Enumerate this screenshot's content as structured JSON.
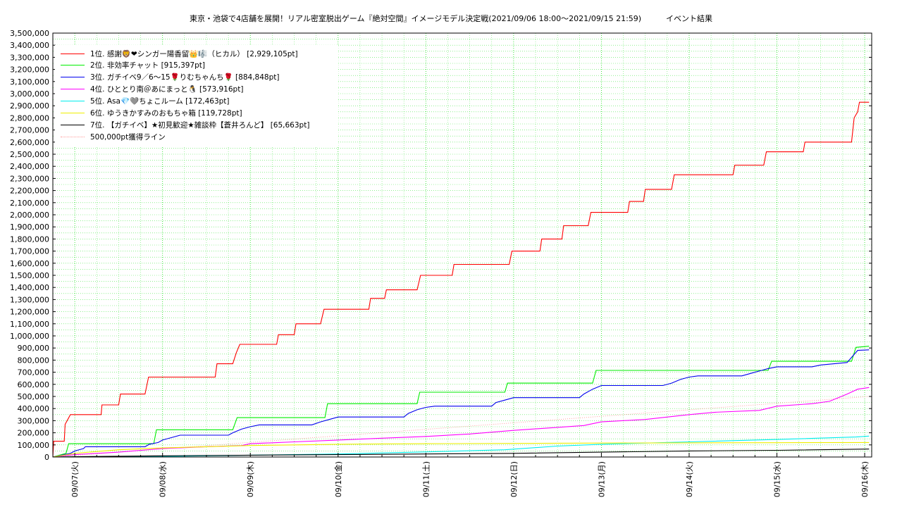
{
  "chart_data": {
    "type": "line",
    "title": "東京・池袋で4店舗を展開！リアル密室脱出ゲーム『絶対空間』イメージモデル決定戦(2021/09/06 18:00〜2021/09/15 21:59)          イベント結果",
    "xlabel": "",
    "ylabel": "",
    "ylim": [
      0,
      3500000
    ],
    "yticks": [
      0,
      100000,
      200000,
      300000,
      400000,
      500000,
      600000,
      700000,
      800000,
      900000,
      1000000,
      1100000,
      1200000,
      1300000,
      1400000,
      1500000,
      1600000,
      1700000,
      1800000,
      1900000,
      2000000,
      2100000,
      2200000,
      2300000,
      2400000,
      2500000,
      2600000,
      2700000,
      2800000,
      2900000,
      3000000,
      3100000,
      3200000,
      3300000,
      3400000,
      3500000
    ],
    "ytick_labels": [
      "0",
      "100,000",
      "200,000",
      "300,000",
      "400,000",
      "500,000",
      "600,000",
      "700,000",
      "800,000",
      "900,000",
      "1,000,000",
      "1,100,000",
      "1,200,000",
      "1,300,000",
      "1,400,000",
      "1,500,000",
      "1,600,000",
      "1,700,000",
      "1,800,000",
      "1,900,000",
      "2,000,000",
      "2,100,000",
      "2,200,000",
      "2,300,000",
      "2,400,000",
      "2,500,000",
      "2,600,000",
      "2,700,000",
      "2,800,000",
      "2,900,000",
      "3,000,000",
      "3,100,000",
      "3,200,000",
      "3,300,000",
      "3,400,000",
      "3,500,000"
    ],
    "xlim": [
      -0.25,
      9.08
    ],
    "xticks": [
      0,
      1,
      2,
      3,
      4,
      5,
      6,
      7,
      8,
      9
    ],
    "xtick_labels": [
      "09/07(火)",
      "09/08(水)",
      "09/09(木)",
      "09/10(金)",
      "09/11(土)",
      "09/12(日)",
      "09/13(月)",
      "09/14(火)",
      "09/15(水)",
      "09/16(木)"
    ],
    "grid": true,
    "legend_position": "top-left",
    "series": [
      {
        "name": "1位. 感謝🦁❤シンガー陽香留👑🎼（ヒカル） [2,929,105pt]",
        "color": "#ff0000",
        "style": "solid",
        "points": [
          [
            -0.25,
            0
          ],
          [
            -0.24,
            130000
          ],
          [
            -0.12,
            130000
          ],
          [
            -0.11,
            270000
          ],
          [
            -0.08,
            310000
          ],
          [
            -0.05,
            350000
          ],
          [
            0.3,
            350000
          ],
          [
            0.31,
            430000
          ],
          [
            0.5,
            430000
          ],
          [
            0.52,
            520000
          ],
          [
            0.8,
            520000
          ],
          [
            0.84,
            660000
          ],
          [
            1.6,
            660000
          ],
          [
            1.62,
            770000
          ],
          [
            1.8,
            770000
          ],
          [
            1.84,
            860000
          ],
          [
            1.88,
            930000
          ],
          [
            2.3,
            930000
          ],
          [
            2.32,
            1010000
          ],
          [
            2.5,
            1010000
          ],
          [
            2.52,
            1100000
          ],
          [
            2.8,
            1100000
          ],
          [
            2.84,
            1220000
          ],
          [
            3.35,
            1220000
          ],
          [
            3.37,
            1310000
          ],
          [
            3.53,
            1310000
          ],
          [
            3.55,
            1380000
          ],
          [
            3.9,
            1380000
          ],
          [
            3.94,
            1500000
          ],
          [
            4.3,
            1500000
          ],
          [
            4.32,
            1590000
          ],
          [
            4.95,
            1590000
          ],
          [
            4.98,
            1700000
          ],
          [
            5.3,
            1700000
          ],
          [
            5.32,
            1800000
          ],
          [
            5.55,
            1800000
          ],
          [
            5.57,
            1910000
          ],
          [
            5.85,
            1910000
          ],
          [
            5.88,
            2020000
          ],
          [
            6.3,
            2020000
          ],
          [
            6.32,
            2110000
          ],
          [
            6.48,
            2110000
          ],
          [
            6.5,
            2210000
          ],
          [
            6.8,
            2210000
          ],
          [
            6.83,
            2330000
          ],
          [
            7.5,
            2330000
          ],
          [
            7.52,
            2410000
          ],
          [
            7.85,
            2410000
          ],
          [
            7.88,
            2520000
          ],
          [
            8.3,
            2520000
          ],
          [
            8.32,
            2600000
          ],
          [
            8.85,
            2600000
          ],
          [
            8.88,
            2800000
          ],
          [
            8.92,
            2850000
          ],
          [
            8.94,
            2929105
          ],
          [
            9.05,
            2929105
          ]
        ]
      },
      {
        "name": "2位. 非効率チャット [915,397pt]",
        "color": "#00ee00",
        "style": "solid",
        "points": [
          [
            -0.25,
            0
          ],
          [
            -0.1,
            30000
          ],
          [
            -0.07,
            110000
          ],
          [
            0.9,
            110000
          ],
          [
            0.93,
            225000
          ],
          [
            1.8,
            225000
          ],
          [
            1.85,
            325000
          ],
          [
            2.85,
            325000
          ],
          [
            2.88,
            440000
          ],
          [
            3.9,
            440000
          ],
          [
            3.93,
            535000
          ],
          [
            4.9,
            535000
          ],
          [
            4.93,
            610000
          ],
          [
            5.9,
            610000
          ],
          [
            5.94,
            715000
          ],
          [
            7.9,
            715000
          ],
          [
            7.94,
            790000
          ],
          [
            8.85,
            790000
          ],
          [
            8.9,
            905000
          ],
          [
            9.05,
            915397
          ]
        ]
      },
      {
        "name": "3位. ガチイベ9／6〜15🌹りむちゃんち🌹 [884,848pt]",
        "color": "#0000ee",
        "style": "solid",
        "points": [
          [
            -0.25,
            0
          ],
          [
            -0.05,
            30000
          ],
          [
            0.0,
            50000
          ],
          [
            0.1,
            70000
          ],
          [
            0.12,
            85000
          ],
          [
            0.8,
            85000
          ],
          [
            0.85,
            105000
          ],
          [
            0.95,
            120000
          ],
          [
            1.0,
            140000
          ],
          [
            1.1,
            160000
          ],
          [
            1.2,
            180000
          ],
          [
            1.75,
            180000
          ],
          [
            1.8,
            200000
          ],
          [
            1.9,
            230000
          ],
          [
            2.0,
            250000
          ],
          [
            2.1,
            265000
          ],
          [
            2.7,
            265000
          ],
          [
            2.8,
            290000
          ],
          [
            2.9,
            310000
          ],
          [
            3.0,
            330000
          ],
          [
            3.75,
            330000
          ],
          [
            3.8,
            360000
          ],
          [
            3.9,
            390000
          ],
          [
            4.0,
            410000
          ],
          [
            4.1,
            420000
          ],
          [
            4.75,
            420000
          ],
          [
            4.8,
            450000
          ],
          [
            4.9,
            470000
          ],
          [
            5.0,
            490000
          ],
          [
            5.75,
            490000
          ],
          [
            5.8,
            520000
          ],
          [
            5.9,
            560000
          ],
          [
            6.0,
            590000
          ],
          [
            6.7,
            590000
          ],
          [
            6.8,
            610000
          ],
          [
            6.9,
            640000
          ],
          [
            7.0,
            660000
          ],
          [
            7.1,
            670000
          ],
          [
            7.6,
            670000
          ],
          [
            7.7,
            690000
          ],
          [
            7.8,
            710000
          ],
          [
            7.9,
            730000
          ],
          [
            8.0,
            745000
          ],
          [
            8.4,
            745000
          ],
          [
            8.5,
            760000
          ],
          [
            8.8,
            780000
          ],
          [
            8.92,
            880000
          ],
          [
            9.05,
            884848
          ]
        ]
      },
      {
        "name": "4位. ひととり南＠あにまっと🐧 [573,916pt]",
        "color": "#ff00ff",
        "style": "solid",
        "points": [
          [
            -0.25,
            0
          ],
          [
            0.0,
            20000
          ],
          [
            0.5,
            40000
          ],
          [
            1.0,
            70000
          ],
          [
            1.5,
            85000
          ],
          [
            1.9,
            95000
          ],
          [
            2.0,
            110000
          ],
          [
            2.5,
            125000
          ],
          [
            3.0,
            140000
          ],
          [
            3.5,
            155000
          ],
          [
            4.0,
            170000
          ],
          [
            4.5,
            190000
          ],
          [
            5.0,
            220000
          ],
          [
            5.5,
            245000
          ],
          [
            5.8,
            260000
          ],
          [
            6.0,
            290000
          ],
          [
            6.5,
            310000
          ],
          [
            7.0,
            350000
          ],
          [
            7.3,
            370000
          ],
          [
            7.8,
            385000
          ],
          [
            8.0,
            420000
          ],
          [
            8.4,
            440000
          ],
          [
            8.6,
            460000
          ],
          [
            8.8,
            520000
          ],
          [
            8.92,
            560000
          ],
          [
            9.05,
            573916
          ]
        ]
      },
      {
        "name": "5位. Asa💎🩶ちょこルーム [172,463pt]",
        "color": "#00eeee",
        "style": "solid",
        "points": [
          [
            -0.25,
            0
          ],
          [
            1.0,
            5000
          ],
          [
            2.0,
            15000
          ],
          [
            3.0,
            25000
          ],
          [
            3.9,
            40000
          ],
          [
            4.9,
            60000
          ],
          [
            5.5,
            90000
          ],
          [
            6.0,
            105000
          ],
          [
            7.0,
            125000
          ],
          [
            8.0,
            145000
          ],
          [
            8.9,
            165000
          ],
          [
            9.05,
            172463
          ]
        ]
      },
      {
        "name": "6位. ゆうきかすみのおもちゃ箱 [119,728pt]",
        "color": "#eeee00",
        "style": "solid",
        "points": [
          [
            -0.25,
            0
          ],
          [
            0.0,
            30000
          ],
          [
            0.5,
            60000
          ],
          [
            1.0,
            75000
          ],
          [
            1.5,
            85000
          ],
          [
            2.0,
            95000
          ],
          [
            2.5,
            100000
          ],
          [
            3.0,
            105000
          ],
          [
            4.0,
            110000
          ],
          [
            5.0,
            112000
          ],
          [
            6.0,
            115000
          ],
          [
            7.0,
            117000
          ],
          [
            8.0,
            118000
          ],
          [
            9.05,
            119728
          ]
        ]
      },
      {
        "name": "7位. 【ガチイベ】★初見歓迎★雑談枠【蒼井ろんど】 [65,663pt]",
        "color": "#000000",
        "style": "solid",
        "points": [
          [
            -0.25,
            0
          ],
          [
            0.0,
            3000
          ],
          [
            1.0,
            10000
          ],
          [
            2.0,
            15000
          ],
          [
            3.0,
            20000
          ],
          [
            4.0,
            25000
          ],
          [
            5.0,
            30000
          ],
          [
            6.0,
            40000
          ],
          [
            7.0,
            50000
          ],
          [
            8.0,
            55000
          ],
          [
            9.05,
            65663
          ]
        ]
      },
      {
        "name": "500,000pt獲得ライン",
        "color": "#ff9999",
        "style": "dotted",
        "points": [
          [
            -0.25,
            0
          ],
          [
            9.05,
            500000
          ]
        ]
      }
    ]
  }
}
